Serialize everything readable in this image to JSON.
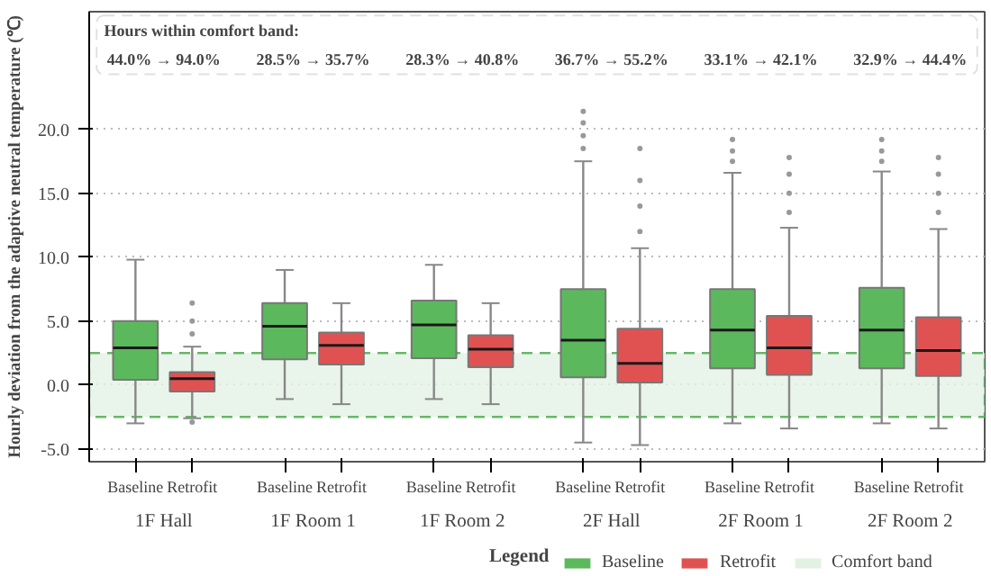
{
  "chart_data": {
    "type": "box",
    "ylabel": "Hourly deviation from the adaptive neutral temperature (℃)",
    "categories": [
      "1F Hall",
      "1F Room 1",
      "1F Room 2",
      "2F Hall",
      "2F Room 1",
      "2F Room 2"
    ],
    "series": [
      {
        "name": "Baseline",
        "color": "#5cb85c",
        "boxes": [
          {
            "low": -3.0,
            "q1": 0.4,
            "median": 2.9,
            "q3": 5.0,
            "high": 9.8
          },
          {
            "low": -1.1,
            "q1": 2.0,
            "median": 4.6,
            "q3": 6.4,
            "high": 9.0
          },
          {
            "low": -1.1,
            "q1": 2.1,
            "median": 4.7,
            "q3": 6.6,
            "high": 9.4
          },
          {
            "low": -4.5,
            "q1": 0.6,
            "median": 3.5,
            "q3": 7.5,
            "high": 17.5,
            "outliers": [
              18.5,
              19.5,
              20.5,
              21.4
            ]
          },
          {
            "low": -3.0,
            "q1": 1.3,
            "median": 4.3,
            "q3": 7.5,
            "high": 16.6,
            "outliers": [
              17.5,
              18.3,
              19.2
            ]
          },
          {
            "low": -3.0,
            "q1": 1.3,
            "median": 4.3,
            "q3": 7.6,
            "high": 16.7,
            "outliers": [
              17.5,
              18.3,
              19.2
            ]
          }
        ]
      },
      {
        "name": "Retrofit",
        "color": "#e05252",
        "boxes": [
          {
            "low": -2.6,
            "q1": -0.5,
            "median": 0.5,
            "q3": 1.0,
            "high": 3.0,
            "outliers": [
              -2.9,
              4.0,
              5.0,
              6.4
            ]
          },
          {
            "low": -1.5,
            "q1": 1.6,
            "median": 3.1,
            "q3": 4.1,
            "high": 6.4
          },
          {
            "low": -1.5,
            "q1": 1.4,
            "median": 2.8,
            "q3": 3.9,
            "high": 6.4
          },
          {
            "low": -4.7,
            "q1": 0.2,
            "median": 1.7,
            "q3": 4.4,
            "high": 10.7,
            "outliers": [
              12.0,
              14.0,
              16.0,
              18.5
            ]
          },
          {
            "low": -3.4,
            "q1": 0.8,
            "median": 2.9,
            "q3": 5.4,
            "high": 12.3,
            "outliers": [
              13.5,
              15.0,
              16.5,
              17.8
            ]
          },
          {
            "low": -3.4,
            "q1": 0.7,
            "median": 2.7,
            "q3": 5.3,
            "high": 12.2,
            "outliers": [
              13.5,
              15.0,
              16.5,
              17.8
            ]
          }
        ]
      }
    ],
    "ylim": [
      -6.0,
      29.2
    ],
    "yticks": [
      {
        "value": -5,
        "label": "-5.0"
      },
      {
        "value": 0,
        "label": "0.0"
      },
      {
        "value": 5,
        "label": "5.0"
      },
      {
        "value": 10,
        "label": "10.0"
      },
      {
        "value": 15,
        "label": "15.0"
      },
      {
        "value": 20,
        "label": "20.0"
      }
    ],
    "bands": [
      {
        "axis": "y",
        "from": -2.5,
        "to": 2.5,
        "label": "Comfort band",
        "color": "#e3f1e5"
      }
    ],
    "annotations": [
      "Hours within comfort band:",
      "44.0% → 94.0%",
      "28.5% → 35.7%",
      "28.3% → 40.8%",
      "36.7% → 55.2%",
      "33.1% → 42.1%",
      "32.9% → 44.4%"
    ],
    "legend_title": "Legend",
    "legend": "bottom right",
    "grid": "y"
  }
}
